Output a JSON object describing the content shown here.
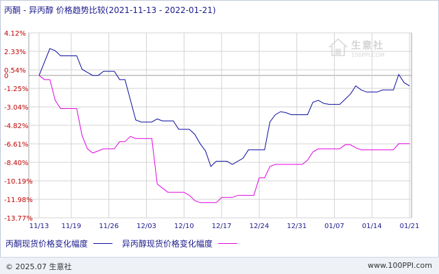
{
  "title": "丙酮 - 异丙醇 价格趋势比较(2021-11-13 - 2022-01-21)",
  "watermark": {
    "name": "生意社",
    "url": "100PPI.COM"
  },
  "footer": {
    "copyright": "© 2025.07 生意社",
    "site": "www.100PPI.com"
  },
  "colors": {
    "series1": "#0a0aa0",
    "series2": "#e000e0",
    "grid": "#d3d3d3",
    "zero_line": "#9a9a9a",
    "axis_text": "#c00000",
    "date_text": "#1a1a8c"
  },
  "chart_data": {
    "type": "line",
    "ylim": [
      -13.77,
      4.12
    ],
    "yticks": [
      "4.12%",
      "2.33%",
      "0.54%",
      "0",
      "-1.25%",
      "-3.04%",
      "-4.82%",
      "-6.61%",
      "-8.40%",
      "-10.19%",
      "-11.98%",
      "-13.77%"
    ],
    "ytick_values": [
      4.12,
      2.33,
      0.54,
      0,
      -1.25,
      -3.04,
      -4.82,
      -6.61,
      -8.4,
      -10.19,
      -11.98,
      -13.77
    ],
    "xtick_labels": [
      "11/13",
      "11/19",
      "11/26",
      "12/03",
      "12/10",
      "12/17",
      "12/24",
      "12/31",
      "01/07",
      "01/14",
      "01/21"
    ],
    "xtick_days": [
      0,
      6,
      13,
      20,
      27,
      34,
      41,
      48,
      55,
      62,
      69
    ],
    "series": [
      {
        "name": "丙酮现货价格变化幅度",
        "color": "#0a0aa0",
        "points": [
          [
            0,
            0
          ],
          [
            2,
            2.6
          ],
          [
            3,
            2.4
          ],
          [
            4,
            1.9
          ],
          [
            7,
            1.9
          ],
          [
            8,
            0.6
          ],
          [
            9,
            0.3
          ],
          [
            10,
            0.0
          ],
          [
            11,
            0.0
          ],
          [
            12,
            0.4
          ],
          [
            14,
            0.4
          ],
          [
            15,
            -0.4
          ],
          [
            16,
            -0.4
          ],
          [
            18,
            -4.3
          ],
          [
            19,
            -4.5
          ],
          [
            21,
            -4.5
          ],
          [
            22,
            -4.2
          ],
          [
            23,
            -4.4
          ],
          [
            25,
            -4.4
          ],
          [
            26,
            -5.2
          ],
          [
            28,
            -5.2
          ],
          [
            29,
            -5.7
          ],
          [
            30,
            -6.6
          ],
          [
            31,
            -7.3
          ],
          [
            32,
            -8.8
          ],
          [
            33,
            -8.3
          ],
          [
            35,
            -8.3
          ],
          [
            36,
            -8.6
          ],
          [
            38,
            -8.0
          ],
          [
            39,
            -7.2
          ],
          [
            42,
            -7.2
          ],
          [
            43,
            -4.5
          ],
          [
            44,
            -3.8
          ],
          [
            45,
            -3.5
          ],
          [
            46,
            -3.6
          ],
          [
            47,
            -3.8
          ],
          [
            50,
            -3.8
          ],
          [
            51,
            -2.6
          ],
          [
            52,
            -2.4
          ],
          [
            53,
            -2.7
          ],
          [
            54,
            -2.8
          ],
          [
            56,
            -2.8
          ],
          [
            58,
            -1.8
          ],
          [
            59,
            -1.0
          ],
          [
            60,
            -1.4
          ],
          [
            61,
            -1.6
          ],
          [
            63,
            -1.6
          ],
          [
            64,
            -1.4
          ],
          [
            66,
            -1.4
          ],
          [
            67,
            0.1
          ],
          [
            68,
            -0.7
          ],
          [
            69,
            -1.0
          ]
        ]
      },
      {
        "name": "异丙醇现货价格变化幅度",
        "color": "#e000e0",
        "points": [
          [
            0,
            0
          ],
          [
            1,
            -0.4
          ],
          [
            2,
            -0.4
          ],
          [
            3,
            -2.4
          ],
          [
            4,
            -3.2
          ],
          [
            7,
            -3.2
          ],
          [
            8,
            -5.8
          ],
          [
            9,
            -7.1
          ],
          [
            10,
            -7.5
          ],
          [
            12,
            -7.1
          ],
          [
            14,
            -7.1
          ],
          [
            15,
            -6.4
          ],
          [
            16,
            -6.4
          ],
          [
            17,
            -5.9
          ],
          [
            18,
            -6.1
          ],
          [
            21,
            -6.1
          ],
          [
            22,
            -10.5
          ],
          [
            24,
            -11.3
          ],
          [
            27,
            -11.3
          ],
          [
            28,
            -11.6
          ],
          [
            29,
            -12.1
          ],
          [
            30,
            -12.3
          ],
          [
            33,
            -12.3
          ],
          [
            34,
            -11.8
          ],
          [
            36,
            -11.8
          ],
          [
            37,
            -11.6
          ],
          [
            40,
            -11.6
          ],
          [
            41,
            -9.9
          ],
          [
            42,
            -9.9
          ],
          [
            43,
            -8.8
          ],
          [
            44,
            -8.6
          ],
          [
            49,
            -8.6
          ],
          [
            50,
            -8.2
          ],
          [
            51,
            -7.4
          ],
          [
            52,
            -7.1
          ],
          [
            56,
            -7.1
          ],
          [
            57,
            -6.7
          ],
          [
            58,
            -6.7
          ],
          [
            59,
            -7.0
          ],
          [
            60,
            -7.2
          ],
          [
            66,
            -7.2
          ],
          [
            67,
            -6.6
          ],
          [
            69,
            -6.6
          ]
        ]
      }
    ]
  }
}
